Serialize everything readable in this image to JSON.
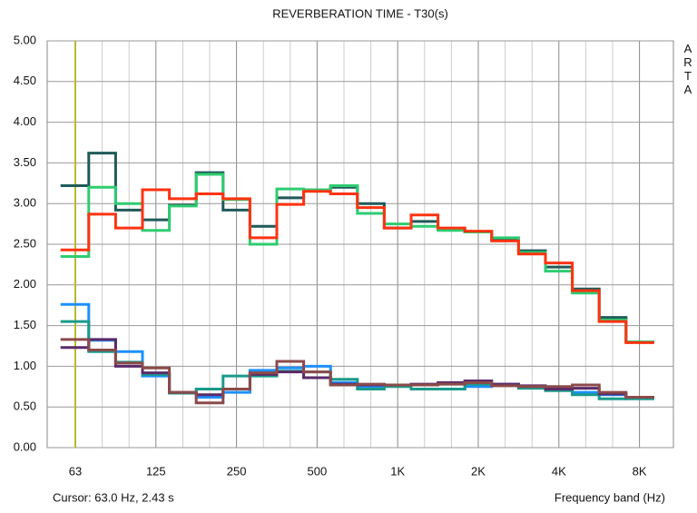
{
  "chart_data": {
    "type": "step",
    "title": "REVERBERATION TIME - T30(s)",
    "watermark": "ARTA",
    "cursor_text": "Cursor: 63.0 Hz, 2.43 s",
    "x_label": "Frequency band (Hz)",
    "categories": [
      "63",
      null,
      null,
      "125",
      null,
      null,
      "250",
      null,
      null,
      "500",
      null,
      null,
      "1K",
      null,
      null,
      "2K",
      null,
      null,
      "4K",
      null,
      null,
      "8K"
    ],
    "ylim": [
      0,
      5
    ],
    "yticks": [
      {
        "value": 0,
        "label": "0.00"
      },
      {
        "value": 0.5,
        "label": "0.50"
      },
      {
        "value": 1,
        "label": "1.00"
      },
      {
        "value": 1.5,
        "label": "1.50"
      },
      {
        "value": 2,
        "label": "2.00"
      },
      {
        "value": 2.5,
        "label": "2.50"
      },
      {
        "value": 3,
        "label": "3.00"
      },
      {
        "value": 3.5,
        "label": "3.50"
      },
      {
        "value": 4,
        "label": "4.00"
      },
      {
        "value": 4.5,
        "label": "4.50"
      },
      {
        "value": 5,
        "label": "5.00"
      }
    ],
    "grid": true,
    "series": [
      {
        "color": "#1f5a58",
        "values": [
          3.22,
          3.62,
          2.92,
          2.8,
          2.98,
          3.38,
          2.92,
          2.72,
          3.07,
          3.17,
          3.2,
          3.0,
          2.7,
          2.78,
          2.68,
          2.65,
          2.55,
          2.42,
          2.22,
          1.95,
          1.6,
          1.3
        ]
      },
      {
        "color": "#2ecc71",
        "values": [
          2.35,
          3.2,
          3.0,
          2.67,
          2.97,
          3.36,
          3.05,
          2.5,
          3.18,
          3.17,
          3.22,
          2.88,
          2.75,
          2.72,
          2.67,
          2.65,
          2.58,
          2.4,
          2.17,
          1.9,
          1.57,
          1.3
        ]
      },
      {
        "color": "#ff3311",
        "values": [
          2.43,
          2.87,
          2.7,
          3.17,
          3.06,
          3.12,
          3.06,
          2.58,
          2.99,
          3.15,
          3.12,
          2.95,
          2.7,
          2.86,
          2.7,
          2.66,
          2.54,
          2.38,
          2.27,
          1.93,
          1.55,
          1.29
        ]
      },
      {
        "color": "#1e90ff",
        "values": [
          1.76,
          1.32,
          1.18,
          0.88,
          0.67,
          0.62,
          0.68,
          0.95,
          0.98,
          1.0,
          0.8,
          0.75,
          0.77,
          0.72,
          0.72,
          0.75,
          0.78,
          0.75,
          0.72,
          0.68,
          0.65,
          0.62
        ]
      },
      {
        "color": "#1a9a8a",
        "values": [
          1.55,
          1.18,
          1.05,
          0.9,
          0.67,
          0.72,
          0.88,
          0.88,
          0.94,
          0.93,
          0.84,
          0.72,
          0.75,
          0.72,
          0.72,
          0.78,
          0.77,
          0.73,
          0.7,
          0.65,
          0.6,
          0.6
        ]
      },
      {
        "color": "#5a2a6a",
        "values": [
          1.23,
          1.33,
          1.0,
          0.92,
          0.68,
          0.65,
          0.72,
          0.9,
          0.93,
          0.86,
          0.78,
          0.77,
          0.77,
          0.78,
          0.8,
          0.82,
          0.78,
          0.76,
          0.72,
          0.73,
          0.66,
          0.62
        ]
      },
      {
        "color": "#8b4a4a",
        "values": [
          1.33,
          1.2,
          1.04,
          0.98,
          0.68,
          0.55,
          0.72,
          0.92,
          1.06,
          0.93,
          0.77,
          0.78,
          0.77,
          0.77,
          0.78,
          0.8,
          0.76,
          0.75,
          0.75,
          0.77,
          0.68,
          0.62
        ]
      }
    ]
  }
}
